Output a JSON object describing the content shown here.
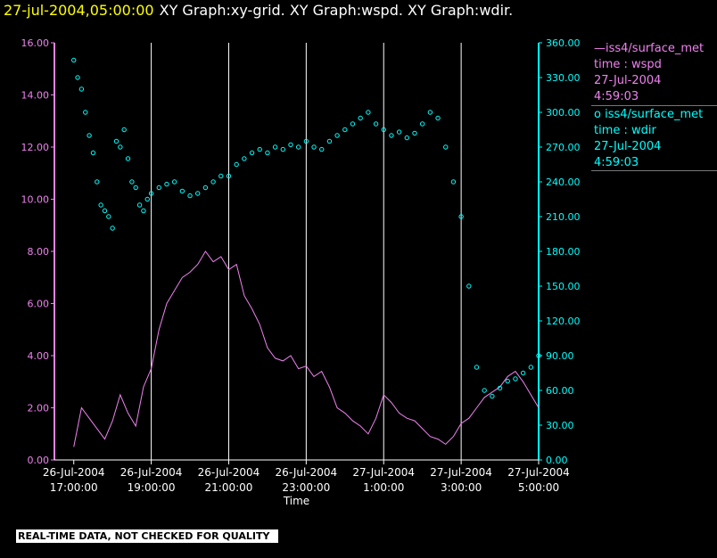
{
  "header": {
    "timestamp": "27-jul-2004,05:00:00",
    "title": "XY Graph:xy-grid.  XY Graph:wspd.  XY Graph:wdir."
  },
  "legend": [
    {
      "prefix": "—",
      "name": "iss4/surface_met",
      "field": "time : wspd",
      "date": "27-Jul-2004",
      "time": "4:59:03",
      "color": "#ee82ee"
    },
    {
      "prefix": "o ",
      "name": "iss4/surface_met",
      "field": "time : wdir",
      "date": "27-Jul-2004",
      "time": "4:59:03",
      "color": "#00ffff"
    }
  ],
  "note": "REAL-TIME DATA, NOT CHECKED FOR QUALITY",
  "chart_data": {
    "type": "line",
    "xlabel": "Time",
    "x_range_hours": [
      16.5,
      29.0
    ],
    "x_ticks": [
      {
        "h": 17,
        "date": "26-Jul-2004",
        "time": "17:00:00"
      },
      {
        "h": 19,
        "date": "26-Jul-2004",
        "time": "19:00:00"
      },
      {
        "h": 21,
        "date": "26-Jul-2004",
        "time": "21:00:00"
      },
      {
        "h": 23,
        "date": "26-Jul-2004",
        "time": "23:00:00"
      },
      {
        "h": 25,
        "date": "27-Jul-2004",
        "time": "1:00:00"
      },
      {
        "h": 27,
        "date": "27-Jul-2004",
        "time": "3:00:00"
      },
      {
        "h": 29,
        "date": "27-Jul-2004",
        "time": "5:00:00"
      }
    ],
    "grid_hours": [
      19,
      21,
      23,
      25,
      27
    ],
    "y_left": {
      "ylim": [
        0,
        16
      ],
      "ticks": [
        "0.00",
        "2.00",
        "4.00",
        "6.00",
        "8.00",
        "10.00",
        "12.00",
        "14.00",
        "16.00"
      ],
      "color": "#ee82ee"
    },
    "y_right": {
      "ylim": [
        0,
        360
      ],
      "ticks": [
        "0.00",
        "30.00",
        "60.00",
        "90.00",
        "120.00",
        "150.00",
        "180.00",
        "210.00",
        "240.00",
        "270.00",
        "300.00",
        "330.00",
        "360.00"
      ],
      "color": "#00ffff"
    },
    "series": [
      {
        "name": "iss4/surface_met time : wspd",
        "axis": "left",
        "style": "line",
        "color": "#ee82ee",
        "x": [
          17.0,
          17.2,
          17.4,
          17.6,
          17.8,
          18.0,
          18.2,
          18.4,
          18.6,
          18.8,
          19.0,
          19.2,
          19.4,
          19.6,
          19.8,
          20.0,
          20.2,
          20.4,
          20.6,
          20.8,
          21.0,
          21.2,
          21.4,
          21.6,
          21.8,
          22.0,
          22.2,
          22.4,
          22.6,
          22.8,
          23.0,
          23.2,
          23.4,
          23.6,
          23.8,
          24.0,
          24.2,
          24.4,
          24.6,
          24.8,
          25.0,
          25.2,
          25.4,
          25.6,
          25.8,
          26.0,
          26.2,
          26.4,
          26.6,
          26.8,
          27.0,
          27.2,
          27.4,
          27.6,
          27.8,
          28.0,
          28.2,
          28.4,
          28.6,
          28.8,
          29.0
        ],
        "y": [
          0.5,
          2.0,
          1.6,
          1.2,
          0.8,
          1.5,
          2.5,
          1.8,
          1.3,
          2.8,
          3.5,
          5.0,
          6.0,
          6.5,
          7.0,
          7.2,
          7.5,
          8.0,
          7.6,
          7.8,
          7.3,
          7.5,
          6.3,
          5.8,
          5.2,
          4.3,
          3.9,
          3.8,
          4.0,
          3.5,
          3.6,
          3.2,
          3.4,
          2.8,
          2.0,
          1.8,
          1.5,
          1.3,
          1.0,
          1.6,
          2.5,
          2.2,
          1.8,
          1.6,
          1.5,
          1.2,
          0.9,
          0.8,
          0.6,
          0.9,
          1.4,
          1.6,
          2.0,
          2.4,
          2.6,
          2.8,
          3.2,
          3.4,
          3.0,
          2.5,
          2.0
        ]
      },
      {
        "name": "iss4/surface_met time : wdir",
        "axis": "right",
        "style": "scatter",
        "color": "#00ffff",
        "x": [
          17.0,
          17.1,
          17.2,
          17.3,
          17.4,
          17.5,
          17.6,
          17.7,
          17.8,
          17.9,
          18.0,
          18.1,
          18.2,
          18.3,
          18.4,
          18.5,
          18.6,
          18.7,
          18.8,
          18.9,
          19.0,
          19.2,
          19.4,
          19.6,
          19.8,
          20.0,
          20.2,
          20.4,
          20.6,
          20.8,
          21.0,
          21.2,
          21.4,
          21.6,
          21.8,
          22.0,
          22.2,
          22.4,
          22.6,
          22.8,
          23.0,
          23.2,
          23.4,
          23.6,
          23.8,
          24.0,
          24.2,
          24.4,
          24.6,
          24.8,
          25.0,
          25.2,
          25.4,
          25.6,
          25.8,
          26.0,
          26.2,
          26.4,
          26.6,
          26.8,
          27.0,
          27.2,
          27.4,
          27.6,
          27.8,
          28.0,
          28.2,
          28.4,
          28.6,
          28.8,
          29.0
        ],
        "y": [
          345,
          330,
          320,
          300,
          280,
          265,
          240,
          220,
          215,
          210,
          200,
          275,
          270,
          285,
          260,
          240,
          235,
          220,
          215,
          225,
          230,
          235,
          238,
          240,
          232,
          228,
          230,
          235,
          240,
          245,
          245,
          255,
          260,
          265,
          268,
          265,
          270,
          268,
          272,
          270,
          275,
          270,
          268,
          275,
          280,
          285,
          290,
          295,
          300,
          290,
          285,
          280,
          283,
          278,
          282,
          290,
          300,
          295,
          270,
          240,
          210,
          150,
          80,
          60,
          55,
          62,
          68,
          70,
          75,
          80,
          90
        ]
      }
    ]
  }
}
